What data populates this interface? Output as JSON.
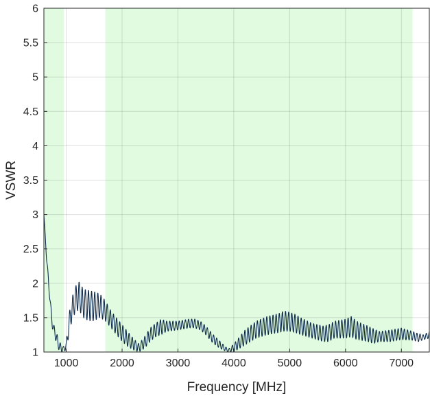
{
  "chart_data": {
    "type": "line",
    "title": "",
    "xlabel": "Frequency [MHz]",
    "ylabel": "VSWR",
    "xlim": [
      600,
      7500
    ],
    "ylim": [
      1,
      6
    ],
    "xticks": [
      1000,
      2000,
      3000,
      4000,
      5000,
      6000,
      7000
    ],
    "yticks": [
      1,
      1.5,
      2,
      2.5,
      3,
      3.5,
      4,
      4.5,
      5,
      5.5,
      6
    ],
    "xtick_labels": [
      "1000",
      "2000",
      "3000",
      "4000",
      "5000",
      "6000",
      "7000"
    ],
    "ytick_labels": [
      "1",
      "1.5",
      "2",
      "2.5",
      "3",
      "3.5",
      "4",
      "4.5",
      "5",
      "5.5",
      "6"
    ],
    "grid": true,
    "highlight_bands": [
      {
        "x": [
          600,
          960
        ],
        "color": "#e0fbe0"
      },
      {
        "x": [
          1700,
          7200
        ],
        "color": "#e0fbe0"
      }
    ],
    "series": [
      {
        "color": "#0d2a4a",
        "envelope_x": [
          600,
          650,
          700,
          750,
          800,
          850,
          900,
          950,
          1000,
          1050,
          1100,
          1150,
          1200,
          1250,
          1300,
          1400,
          1500,
          1600,
          1700,
          1800,
          1900,
          2000,
          2100,
          2200,
          2300,
          2400,
          2500,
          2600,
          2700,
          2800,
          3000,
          3200,
          3300,
          3400,
          3500,
          3600,
          3700,
          3800,
          3900,
          4000,
          4100,
          4200,
          4400,
          4600,
          4800,
          4900,
          5000,
          5100,
          5200,
          5400,
          5600,
          5700,
          5800,
          6000,
          6100,
          6200,
          6400,
          6500,
          6600,
          6800,
          7000,
          7200,
          7300,
          7400,
          7500
        ],
        "envelope_upper": [
          3.0,
          2.4,
          1.9,
          1.45,
          1.35,
          1.22,
          1.12,
          1.08,
          1.15,
          1.55,
          1.78,
          1.92,
          2.02,
          2.02,
          1.92,
          1.9,
          1.88,
          1.85,
          1.75,
          1.6,
          1.5,
          1.4,
          1.3,
          1.2,
          1.12,
          1.22,
          1.35,
          1.42,
          1.48,
          1.45,
          1.45,
          1.48,
          1.48,
          1.45,
          1.38,
          1.28,
          1.2,
          1.12,
          1.04,
          1.12,
          1.22,
          1.32,
          1.45,
          1.52,
          1.56,
          1.6,
          1.58,
          1.55,
          1.5,
          1.42,
          1.38,
          1.4,
          1.45,
          1.48,
          1.52,
          1.45,
          1.38,
          1.34,
          1.3,
          1.32,
          1.35,
          1.3,
          1.27,
          1.25,
          1.3
        ],
        "envelope_lower": [
          3.0,
          2.3,
          1.8,
          1.35,
          1.2,
          1.05,
          1.0,
          1.0,
          1.03,
          1.25,
          1.45,
          1.55,
          1.6,
          1.58,
          1.5,
          1.45,
          1.45,
          1.5,
          1.45,
          1.35,
          1.25,
          1.15,
          1.08,
          1.03,
          1.0,
          1.05,
          1.15,
          1.22,
          1.25,
          1.3,
          1.32,
          1.35,
          1.35,
          1.32,
          1.25,
          1.15,
          1.08,
          1.03,
          1.0,
          1.0,
          1.05,
          1.1,
          1.2,
          1.25,
          1.28,
          1.3,
          1.3,
          1.28,
          1.25,
          1.2,
          1.15,
          1.15,
          1.2,
          1.2,
          1.22,
          1.18,
          1.15,
          1.12,
          1.15,
          1.15,
          1.18,
          1.17,
          1.15,
          1.18,
          1.2
        ],
        "ripple_period_mhz": 56
      }
    ]
  }
}
